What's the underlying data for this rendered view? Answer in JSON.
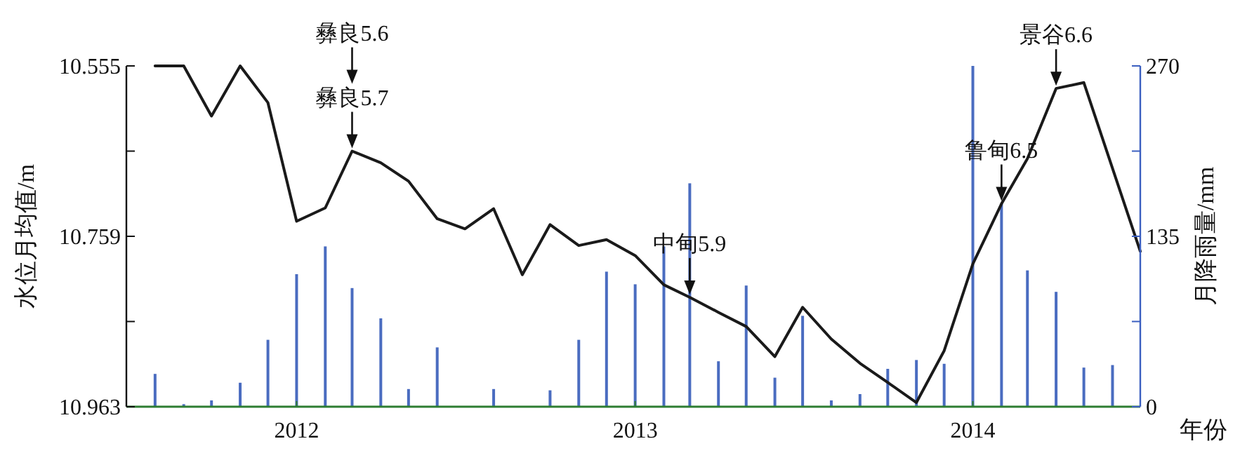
{
  "chart_data": {
    "type": "line",
    "xlabel": "年份",
    "ylabel": "水位月均值/m",
    "y2label": "月降雨量/mm",
    "xlim": [
      "2011-07",
      "2014-07"
    ],
    "xticks": [
      "2012",
      "2013",
      "2014"
    ],
    "ylim": [
      10.963,
      10.555
    ],
    "yticks": [
      10.555,
      {
        "value": 10.657,
        "label": null
      },
      10.759,
      {
        "value": 10.861,
        "label": null
      },
      10.963
    ],
    "y2lim": [
      0,
      270
    ],
    "y2ticks": [
      0,
      {
        "value": 67.5,
        "label": null
      },
      135,
      {
        "value": 202.5,
        "label": null
      },
      270
    ],
    "grid": false,
    "marker": "none",
    "line_style": "solid",
    "series": [
      {
        "type": "bar",
        "axis": "y2",
        "color": "#4a6cc0",
        "x": [
          "2011-08",
          "2011-09",
          "2011-10",
          "2011-11",
          "2011-12",
          "2012-01",
          "2012-02",
          "2012-03",
          "2012-04",
          "2012-05",
          "2012-06",
          "2012-08",
          "2012-10",
          "2012-11",
          "2012-12",
          "2013-01",
          "2013-02",
          "2013-03",
          "2013-04",
          "2013-05",
          "2013-06",
          "2013-07",
          "2013-08",
          "2013-09",
          "2013-10",
          "2013-11",
          "2013-12",
          "2014-01",
          "2014-02",
          "2014-03",
          "2014-04",
          "2014-05",
          "2014-06"
        ],
        "values": [
          26,
          2,
          5,
          19,
          53,
          105,
          127,
          94,
          70,
          14,
          47,
          14,
          13,
          53,
          107,
          97,
          127,
          177,
          36,
          96,
          23,
          72,
          5,
          10,
          30,
          37,
          34,
          270,
          161,
          108,
          91,
          31,
          33
        ]
      },
      {
        "axis": "y",
        "color": "#1a1a1a",
        "x": [
          "2011-08",
          "2011-09",
          "2011-10",
          "2011-11",
          "2011-12",
          "2012-01",
          "2012-02",
          "2012-03",
          "2012-04",
          "2012-05",
          "2012-06",
          "2012-07",
          "2012-08",
          "2012-09",
          "2012-10",
          "2012-11",
          "2012-12",
          "2013-01",
          "2013-02",
          "2013-03",
          "2013-04",
          "2013-05",
          "2013-06",
          "2013-07",
          "2013-08",
          "2013-09",
          "2013-10",
          "2013-11",
          "2013-12",
          "2014-01",
          "2014-02",
          "2014-03",
          "2014-04",
          "2014-05",
          "2014-07"
        ],
        "values": [
          10.555,
          10.555,
          10.615,
          10.555,
          10.599,
          10.741,
          10.725,
          10.657,
          10.671,
          10.693,
          10.738,
          10.75,
          10.726,
          10.805,
          10.745,
          10.77,
          10.763,
          10.782,
          10.817,
          10.832,
          10.85,
          10.867,
          10.903,
          10.844,
          10.882,
          10.911,
          10.934,
          10.958,
          10.896,
          10.792,
          10.72,
          10.666,
          10.582,
          10.575,
          10.777
        ]
      }
    ],
    "annotations": [
      {
        "text": "彝良5.6",
        "x": "2012-03"
      },
      {
        "text": "彝良5.7",
        "x": "2012-03"
      },
      {
        "text": "中甸5.9",
        "x": "2013-03"
      },
      {
        "text": "鲁甸6.5",
        "x": "2014-02"
      },
      {
        "text": "景谷6.6",
        "x": "2014-04"
      }
    ]
  }
}
